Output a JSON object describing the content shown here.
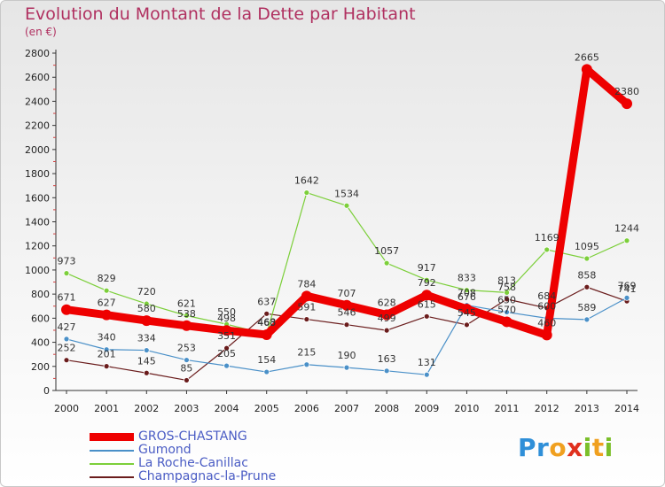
{
  "title": "Evolution du Montant de la Dette par Habitant",
  "subtitle": "(en €)",
  "logo": "Proxiti",
  "chart_data": {
    "type": "line",
    "x": [
      2000,
      2001,
      2002,
      2003,
      2004,
      2005,
      2006,
      2007,
      2008,
      2009,
      2010,
      2011,
      2012,
      2013,
      2014
    ],
    "ylim": [
      0,
      2800
    ],
    "yticks": [
      0,
      200,
      400,
      600,
      800,
      1000,
      1200,
      1400,
      1600,
      1800,
      2000,
      2200,
      2400,
      2600,
      2800
    ],
    "grid": false,
    "legend_position": "bottom-left",
    "series": [
      {
        "name": "GROS-CHASTANG",
        "color": "#ee0000",
        "values": [
          671,
          627,
          580,
          538,
          498,
          463,
          784,
          707,
          628,
          792,
          676,
          570,
          460,
          2665,
          2380
        ]
      },
      {
        "name": "Gumond",
        "color": "#4a90c8",
        "values": [
          427,
          340,
          334,
          253,
          205,
          154,
          215,
          190,
          163,
          131,
          708,
          650,
          600,
          589,
          769
        ]
      },
      {
        "name": "La Roche-Canillac",
        "color": "#7ccf3a",
        "values": [
          973,
          829,
          720,
          621,
          550,
          468,
          1642,
          1534,
          1057,
          917,
          833,
          813,
          1169,
          1095,
          1244
        ]
      },
      {
        "name": "Champagnac-la-Prune",
        "color": "#6a1c1c",
        "values": [
          252,
          201,
          145,
          85,
          351,
          637,
          591,
          546,
          499,
          615,
          545,
          758,
          684,
          858,
          741
        ]
      }
    ]
  }
}
